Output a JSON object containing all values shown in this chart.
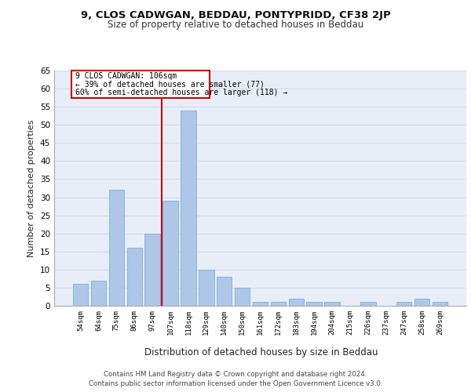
{
  "title1": "9, CLOS CADWGAN, BEDDAU, PONTYPRIDD, CF38 2JP",
  "title2": "Size of property relative to detached houses in Beddau",
  "xlabel": "Distribution of detached houses by size in Beddau",
  "ylabel": "Number of detached properties",
  "categories": [
    "54sqm",
    "64sqm",
    "75sqm",
    "86sqm",
    "97sqm",
    "107sqm",
    "118sqm",
    "129sqm",
    "140sqm",
    "150sqm",
    "161sqm",
    "172sqm",
    "183sqm",
    "194sqm",
    "204sqm",
    "215sqm",
    "226sqm",
    "237sqm",
    "247sqm",
    "258sqm",
    "269sqm"
  ],
  "values": [
    6,
    7,
    32,
    16,
    20,
    29,
    54,
    10,
    8,
    5,
    1,
    1,
    2,
    1,
    1,
    0,
    1,
    0,
    1,
    2,
    1
  ],
  "bar_color": "#aec6e8",
  "bar_edge_color": "#7aaedc",
  "grid_color": "#d0d8e8",
  "annotation_box_color": "#cc0000",
  "vline_color": "#cc0000",
  "annotation_text_line1": "9 CLOS CADWGAN: 106sqm",
  "annotation_text_line2": "← 39% of detached houses are smaller (77)",
  "annotation_text_line3": "60% of semi-detached houses are larger (118) →",
  "background_color": "#e8eef8",
  "footer_line1": "Contains HM Land Registry data © Crown copyright and database right 2024.",
  "footer_line2": "Contains public sector information licensed under the Open Government Licence v3.0.",
  "ylim": [
    0,
    65
  ],
  "yticks": [
    0,
    5,
    10,
    15,
    20,
    25,
    30,
    35,
    40,
    45,
    50,
    55,
    60,
    65
  ]
}
